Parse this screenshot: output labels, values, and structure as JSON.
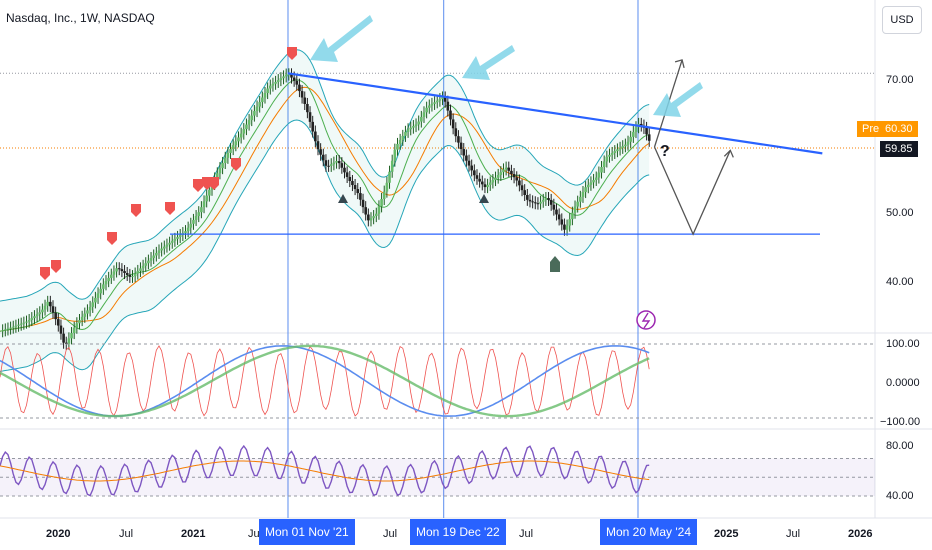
{
  "header": {
    "title": "Nasdaq, Inc., 1W, NASDAQ",
    "currency": "USD"
  },
  "badges": {
    "pre_label": "Pre",
    "pre_value": "60.30",
    "last_value": "59.85",
    "question": "?"
  },
  "chart_data": [
    {
      "type": "candlestick",
      "title": "Nasdaq, Inc., 1W, NASDAQ",
      "ylim": [
        30,
        78
      ],
      "y_ticks": [
        "70.00",
        "50.00",
        "40.00"
      ],
      "x_ticks": [
        "2020",
        "Jul",
        "2021",
        "Jul",
        "Jul",
        "Jul",
        "2025",
        "Jul",
        "2026"
      ],
      "date_markers": [
        "Mon 01 Nov '21",
        "Mon 19 Dec '22",
        "Mon 20 May '24"
      ],
      "close_series": [
        [
          2019.75,
          32.5
        ],
        [
          2019.85,
          33.2
        ],
        [
          2019.95,
          34.0
        ],
        [
          2020.05,
          35.5
        ],
        [
          2020.1,
          37.0
        ],
        [
          2020.18,
          33.0
        ],
        [
          2020.22,
          30.2
        ],
        [
          2020.3,
          33.5
        ],
        [
          2020.4,
          36.0
        ],
        [
          2020.5,
          39.5
        ],
        [
          2020.6,
          42.0
        ],
        [
          2020.7,
          40.5
        ],
        [
          2020.8,
          42.5
        ],
        [
          2020.9,
          44.5
        ],
        [
          2021.0,
          46.0
        ],
        [
          2021.1,
          47.5
        ],
        [
          2021.2,
          50.5
        ],
        [
          2021.3,
          55.0
        ],
        [
          2021.4,
          59.0
        ],
        [
          2021.5,
          62.0
        ],
        [
          2021.6,
          65.5
        ],
        [
          2021.7,
          69.0
        ],
        [
          2021.84,
          71.0
        ],
        [
          2021.9,
          69.5
        ],
        [
          2021.97,
          66.0
        ],
        [
          2022.05,
          60.0
        ],
        [
          2022.12,
          57.0
        ],
        [
          2022.2,
          58.0
        ],
        [
          2022.27,
          55.5
        ],
        [
          2022.35,
          53.0
        ],
        [
          2022.42,
          49.0
        ],
        [
          2022.48,
          50.0
        ],
        [
          2022.55,
          54.0
        ],
        [
          2022.62,
          60.0
        ],
        [
          2022.7,
          62.5
        ],
        [
          2022.78,
          63.5
        ],
        [
          2022.85,
          66.0
        ],
        [
          2022.97,
          67.5
        ],
        [
          2023.05,
          62.0
        ],
        [
          2023.12,
          58.5
        ],
        [
          2023.2,
          55.5
        ],
        [
          2023.27,
          54.0
        ],
        [
          2023.35,
          55.5
        ],
        [
          2023.42,
          57.0
        ],
        [
          2023.5,
          55.0
        ],
        [
          2023.58,
          52.0
        ],
        [
          2023.65,
          51.5
        ],
        [
          2023.72,
          52.5
        ],
        [
          2023.8,
          49.5
        ],
        [
          2023.85,
          47.5
        ],
        [
          2023.92,
          51.0
        ],
        [
          2024.0,
          54.0
        ],
        [
          2024.08,
          55.5
        ],
        [
          2024.15,
          58.5
        ],
        [
          2024.22,
          59.5
        ],
        [
          2024.3,
          60.5
        ],
        [
          2024.38,
          63.5
        ],
        [
          2024.42,
          63.0
        ],
        [
          2024.48,
          60.0
        ]
      ],
      "support_level": 47.0,
      "resistance_line": [
        [
          2021.84,
          71.0
        ],
        [
          2025.5,
          59.5
        ]
      ],
      "projection_up": [
        [
          2024.5,
          60.0
        ],
        [
          2024.7,
          73.0
        ]
      ],
      "projection_zigzag": [
        [
          2024.5,
          60.0
        ],
        [
          2024.78,
          47.0
        ],
        [
          2025.05,
          59.5
        ]
      ]
    },
    {
      "type": "line",
      "name": "oscillator",
      "y_ticks": [
        "100.00",
        "0.0000",
        "−100.00"
      ],
      "ylim": [
        -130,
        130
      ]
    },
    {
      "type": "line",
      "name": "rsi",
      "y_ticks": [
        "80.00",
        "40.00"
      ],
      "ylim": [
        30,
        85
      ]
    }
  ],
  "colors": {
    "accent": "#2962ff",
    "price_up": "#26a69a",
    "price_down": "#ef5350",
    "orange": "#f57c00",
    "arrow": "#7fd3e8"
  }
}
